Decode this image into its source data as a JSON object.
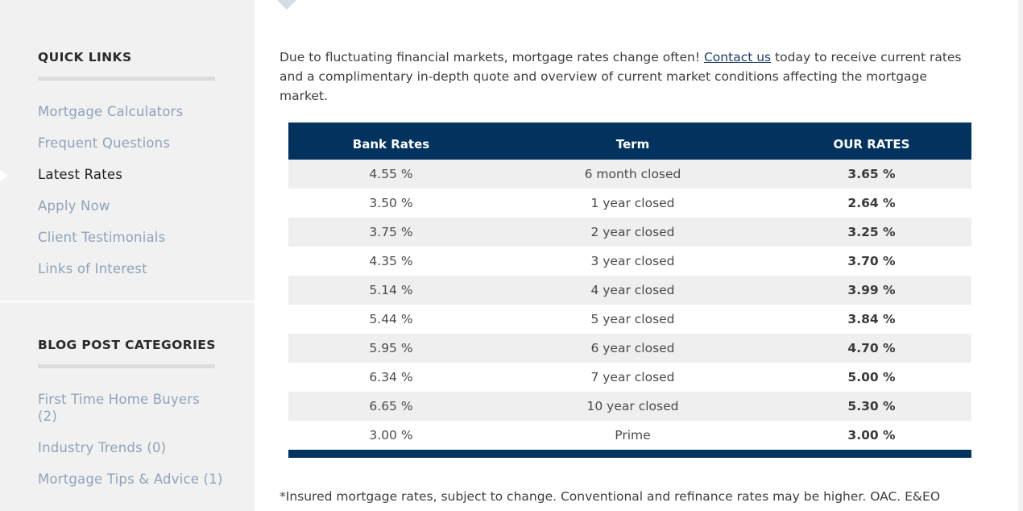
{
  "sidebar": {
    "quick_links": {
      "heading": "QUICK LINKS",
      "items": [
        {
          "label": "Mortgage Calculators"
        },
        {
          "label": "Frequent Questions"
        },
        {
          "label": "Latest Rates"
        },
        {
          "label": "Apply Now"
        },
        {
          "label": "Client Testimonials"
        },
        {
          "label": "Links of Interest"
        }
      ]
    },
    "blog_categories": {
      "heading": "BLOG POST CATEGORIES",
      "items": [
        {
          "label": "First Time Home Buyers (2)"
        },
        {
          "label": "Industry Trends (0)"
        },
        {
          "label": "Mortgage Tips & Advice (1)"
        }
      ]
    }
  },
  "main": {
    "intro": {
      "before_link": "Due to fluctuating financial markets, mortgage rates change often! ",
      "link_text": "Contact us",
      "after_link": " today to receive current rates and a complimentary in-depth quote and overview of current market conditions affecting the mortgage market."
    },
    "rates_table": {
      "headers": {
        "bank_rates": "Bank Rates",
        "term": "Term",
        "our_rates": "OUR RATES"
      },
      "rows": [
        {
          "bank": "4.55 %",
          "term": "6 month closed",
          "ours": "3.65 %"
        },
        {
          "bank": "3.50 %",
          "term": "1 year closed",
          "ours": "2.64 %"
        },
        {
          "bank": "3.75 %",
          "term": "2 year closed",
          "ours": "3.25 %"
        },
        {
          "bank": "4.35 %",
          "term": "3 year closed",
          "ours": "3.70 %"
        },
        {
          "bank": "5.14 %",
          "term": "4 year closed",
          "ours": "3.99 %"
        },
        {
          "bank": "5.44 %",
          "term": "5 year closed",
          "ours": "3.84 %"
        },
        {
          "bank": "5.95 %",
          "term": "6 year closed",
          "ours": "4.70 %"
        },
        {
          "bank": "6.34 %",
          "term": "7 year closed",
          "ours": "5.00 %"
        },
        {
          "bank": "6.65 %",
          "term": "10 year closed",
          "ours": "5.30 %"
        },
        {
          "bank": "3.00 %",
          "term": "Prime",
          "ours": "3.00 %"
        }
      ]
    },
    "footnote": "*Insured mortgage rates, subject to change. Conventional and refinance rates may be higher. OAC. E&EO"
  },
  "colors": {
    "sidebar_bg": "#f1f1f1",
    "link": "#8ea3bc",
    "table_header": "#02325e",
    "row_stripe": "#efefef"
  }
}
